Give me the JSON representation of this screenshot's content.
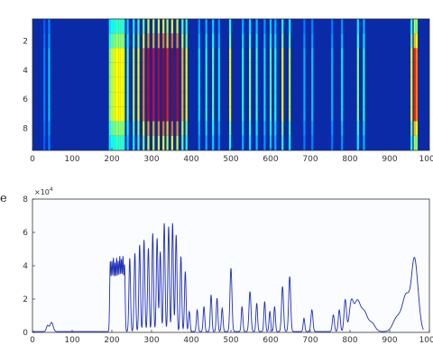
{
  "chart_data": [
    {
      "type": "heatmap",
      "title": "",
      "xlabel": "",
      "ylabel": "",
      "xlim": [
        0,
        1000
      ],
      "ylim": [
        0.5,
        9.5
      ],
      "y_reversed": true,
      "x_ticks": [
        "0",
        "100",
        "200",
        "300",
        "400",
        "500",
        "600",
        "700",
        "800",
        "900",
        "1000"
      ],
      "y_ticks": [
        "2",
        "4",
        "6",
        "8"
      ],
      "colormap": "jet",
      "background_color": "#0a2aa8",
      "rows": 9,
      "lines": [
        {
          "x": 30,
          "intensity": 0.25
        },
        {
          "x": 42,
          "intensity": 0.32
        },
        {
          "x": 195,
          "intensity": 0.5
        },
        {
          "x": 200,
          "intensity": 0.55
        },
        {
          "x": 205,
          "intensity": 0.6
        },
        {
          "x": 210,
          "intensity": 0.62
        },
        {
          "x": 215,
          "intensity": 0.62
        },
        {
          "x": 220,
          "intensity": 0.63
        },
        {
          "x": 225,
          "intensity": 0.62
        },
        {
          "x": 230,
          "intensity": 0.6
        },
        {
          "x": 240,
          "intensity": 0.45
        },
        {
          "x": 255,
          "intensity": 0.55
        },
        {
          "x": 267,
          "intensity": 0.62
        },
        {
          "x": 280,
          "intensity": 0.75
        },
        {
          "x": 292,
          "intensity": 0.9
        },
        {
          "x": 305,
          "intensity": 0.88
        },
        {
          "x": 318,
          "intensity": 0.92
        },
        {
          "x": 330,
          "intensity": 0.95
        },
        {
          "x": 340,
          "intensity": 0.85
        },
        {
          "x": 352,
          "intensity": 0.97
        },
        {
          "x": 365,
          "intensity": 0.92
        },
        {
          "x": 378,
          "intensity": 0.7
        },
        {
          "x": 388,
          "intensity": 0.6
        },
        {
          "x": 420,
          "intensity": 0.35
        },
        {
          "x": 438,
          "intensity": 0.4
        },
        {
          "x": 455,
          "intensity": 0.45
        },
        {
          "x": 470,
          "intensity": 0.35
        },
        {
          "x": 498,
          "intensity": 0.6
        },
        {
          "x": 530,
          "intensity": 0.4
        },
        {
          "x": 548,
          "intensity": 0.5
        },
        {
          "x": 565,
          "intensity": 0.42
        },
        {
          "x": 585,
          "intensity": 0.35
        },
        {
          "x": 600,
          "intensity": 0.45
        },
        {
          "x": 612,
          "intensity": 0.4
        },
        {
          "x": 630,
          "intensity": 0.62
        },
        {
          "x": 648,
          "intensity": 0.55
        },
        {
          "x": 685,
          "intensity": 0.3
        },
        {
          "x": 705,
          "intensity": 0.32
        },
        {
          "x": 755,
          "intensity": 0.3
        },
        {
          "x": 780,
          "intensity": 0.35
        },
        {
          "x": 820,
          "intensity": 0.5
        },
        {
          "x": 835,
          "intensity": 0.4
        },
        {
          "x": 955,
          "intensity": 0.6
        },
        {
          "x": 963,
          "intensity": 0.85
        },
        {
          "x": 968,
          "intensity": 0.75
        }
      ],
      "band_rows": [
        3,
        7
      ]
    },
    {
      "type": "line",
      "title": "",
      "xlabel": "",
      "ylabel": "",
      "xlim": [
        0,
        1000
      ],
      "ylim": [
        0,
        8
      ],
      "y_scale_exponent": "10",
      "y_scale_power": "4",
      "x_ticks": [
        "0",
        "100",
        "200",
        "300",
        "400",
        "500",
        "600",
        "700",
        "800",
        "900",
        "1000"
      ],
      "y_ticks": [
        "0",
        "2",
        "4",
        "6",
        "8"
      ],
      "series_color": "#1f2fb8",
      "background_color": "#fbfcff",
      "baseline": 0.05,
      "peaks": [
        {
          "x": 38,
          "h": 0.35,
          "w": 3
        },
        {
          "x": 48,
          "h": 0.55,
          "w": 4
        },
        {
          "x": 196,
          "h": 4.1,
          "w": 1.5
        },
        {
          "x": 200,
          "h": 4.0,
          "w": 1.5
        },
        {
          "x": 204,
          "h": 4.2,
          "w": 1.5
        },
        {
          "x": 208,
          "h": 3.9,
          "w": 1.5
        },
        {
          "x": 212,
          "h": 4.2,
          "w": 1.5
        },
        {
          "x": 216,
          "h": 4.0,
          "w": 1.5
        },
        {
          "x": 220,
          "h": 4.3,
          "w": 1.5
        },
        {
          "x": 224,
          "h": 4.1,
          "w": 1.5
        },
        {
          "x": 228,
          "h": 4.3,
          "w": 1.5
        },
        {
          "x": 232,
          "h": 3.9,
          "w": 1.5
        },
        {
          "x": 245,
          "h": 4.4,
          "w": 2
        },
        {
          "x": 258,
          "h": 4.7,
          "w": 2
        },
        {
          "x": 270,
          "h": 5.2,
          "w": 2
        },
        {
          "x": 281,
          "h": 5.5,
          "w": 2
        },
        {
          "x": 292,
          "h": 5.0,
          "w": 2
        },
        {
          "x": 303,
          "h": 5.9,
          "w": 2
        },
        {
          "x": 314,
          "h": 5.6,
          "w": 2
        },
        {
          "x": 322,
          "h": 4.8,
          "w": 2
        },
        {
          "x": 332,
          "h": 6.5,
          "w": 2
        },
        {
          "x": 343,
          "h": 6.3,
          "w": 2
        },
        {
          "x": 353,
          "h": 6.5,
          "w": 2
        },
        {
          "x": 362,
          "h": 5.8,
          "w": 2
        },
        {
          "x": 374,
          "h": 4.5,
          "w": 2
        },
        {
          "x": 385,
          "h": 3.6,
          "w": 2
        },
        {
          "x": 395,
          "h": 1.2,
          "w": 2
        },
        {
          "x": 415,
          "h": 1.3,
          "w": 2
        },
        {
          "x": 432,
          "h": 1.5,
          "w": 2
        },
        {
          "x": 450,
          "h": 2.2,
          "w": 2
        },
        {
          "x": 465,
          "h": 2.0,
          "w": 2
        },
        {
          "x": 478,
          "h": 1.4,
          "w": 2
        },
        {
          "x": 500,
          "h": 3.8,
          "w": 2.5
        },
        {
          "x": 528,
          "h": 1.5,
          "w": 2
        },
        {
          "x": 548,
          "h": 2.4,
          "w": 2.5
        },
        {
          "x": 565,
          "h": 1.7,
          "w": 2
        },
        {
          "x": 585,
          "h": 1.8,
          "w": 2
        },
        {
          "x": 598,
          "h": 1.2,
          "w": 2
        },
        {
          "x": 610,
          "h": 1.5,
          "w": 2
        },
        {
          "x": 630,
          "h": 2.7,
          "w": 2.5
        },
        {
          "x": 648,
          "h": 3.3,
          "w": 2.5
        },
        {
          "x": 684,
          "h": 0.8,
          "w": 2
        },
        {
          "x": 704,
          "h": 1.3,
          "w": 2.5
        },
        {
          "x": 758,
          "h": 1.0,
          "w": 2.5
        },
        {
          "x": 773,
          "h": 1.3,
          "w": 2.5
        },
        {
          "x": 788,
          "h": 1.9,
          "w": 3
        },
        {
          "x": 803,
          "h": 1.6,
          "w": 5
        },
        {
          "x": 818,
          "h": 1.8,
          "w": 8
        },
        {
          "x": 836,
          "h": 1.1,
          "w": 8
        },
        {
          "x": 855,
          "h": 0.5,
          "w": 8
        },
        {
          "x": 918,
          "h": 0.8,
          "w": 10
        },
        {
          "x": 942,
          "h": 2.2,
          "w": 10
        },
        {
          "x": 962,
          "h": 3.9,
          "w": 7
        },
        {
          "x": 972,
          "h": 1.0,
          "w": 6
        }
      ]
    }
  ],
  "stray_text": "e",
  "exponent_label": "×10"
}
